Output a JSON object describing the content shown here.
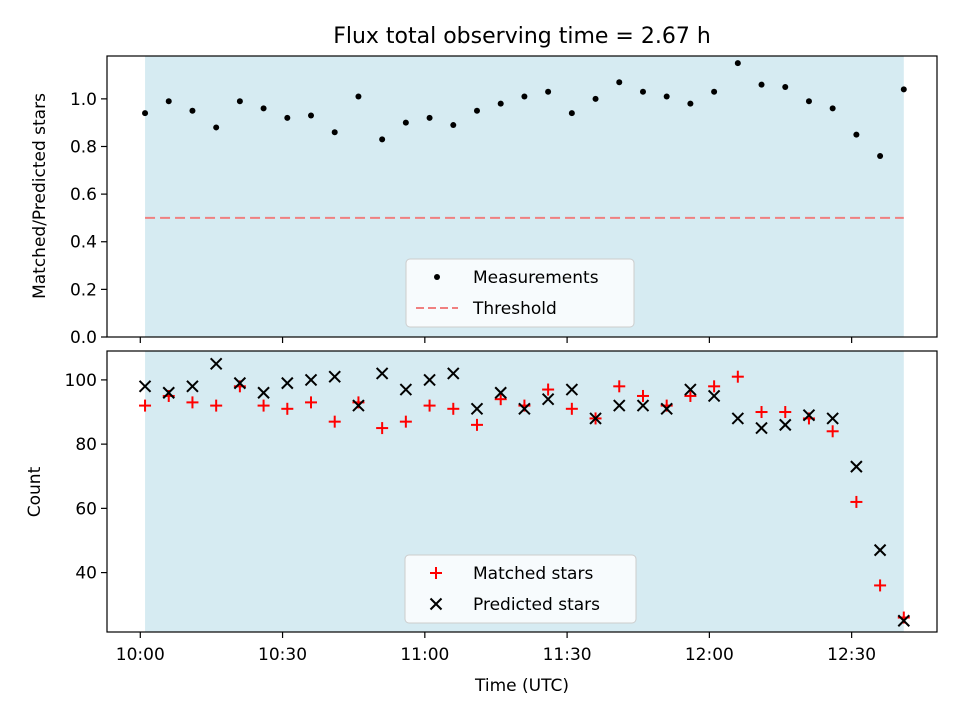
{
  "chart_data": [
    {
      "type": "scatter",
      "title": "Flux total observing time = 2.67 h",
      "xlabel": "",
      "ylabel": "Matched/Predicted stars",
      "ylim": [
        0,
        1.18
      ],
      "yticks": [
        "0.0",
        "0.2",
        "0.4",
        "0.6",
        "0.8",
        "1.0"
      ],
      "ytick_values": [
        0,
        0.2,
        0.4,
        0.6,
        0.8,
        1.0
      ],
      "x": [
        0.0167,
        0.1,
        0.1833,
        0.2667,
        0.35,
        0.4333,
        0.5167,
        0.6,
        0.6833,
        0.7667,
        0.85,
        0.9333,
        1.0167,
        1.1,
        1.1833,
        1.2667,
        1.35,
        1.4333,
        1.5167,
        1.6,
        1.6833,
        1.7667,
        1.85,
        1.9333,
        2.0167,
        2.1,
        2.1833,
        2.2667,
        2.35,
        2.4333,
        2.5167,
        2.6,
        2.6833
      ],
      "series": [
        {
          "name": "Measurements",
          "values": [
            0.94,
            0.99,
            0.95,
            0.88,
            0.99,
            0.96,
            0.92,
            0.93,
            0.86,
            1.01,
            0.83,
            0.9,
            0.92,
            0.89,
            0.95,
            0.98,
            1.01,
            1.03,
            0.94,
            1.0,
            1.07,
            1.03,
            1.01,
            0.98,
            1.03,
            1.15,
            1.06,
            1.05,
            0.99,
            0.96,
            0.85,
            0.76,
            1.04
          ]
        },
        {
          "name": "Threshold",
          "values": [
            0.5,
            0.5
          ]
        }
      ],
      "threshold": 0.5,
      "shaded_span_hours": [
        0.0167,
        2.6833
      ],
      "legend": [
        "Measurements",
        "Threshold"
      ],
      "legend_position": "lower-center"
    },
    {
      "type": "scatter",
      "title": "",
      "xlabel": "Time (UTC)",
      "ylabel": "Count",
      "ylim": [
        21.5,
        109
      ],
      "yticks": [
        "40",
        "60",
        "80",
        "100"
      ],
      "ytick_values": [
        40,
        60,
        80,
        100
      ],
      "xlim_hours": [
        -0.117,
        2.8
      ],
      "xticks": [
        "10:00",
        "10:30",
        "11:00",
        "11:30",
        "12:00",
        "12:30"
      ],
      "xtick_values": [
        0,
        0.5,
        1.0,
        1.5,
        2.0,
        2.5
      ],
      "x": [
        0.0167,
        0.1,
        0.1833,
        0.2667,
        0.35,
        0.4333,
        0.5167,
        0.6,
        0.6833,
        0.7667,
        0.85,
        0.9333,
        1.0167,
        1.1,
        1.1833,
        1.2667,
        1.35,
        1.4333,
        1.5167,
        1.6,
        1.6833,
        1.7667,
        1.85,
        1.9333,
        2.0167,
        2.1,
        2.1833,
        2.2667,
        2.35,
        2.4333,
        2.5167,
        2.6,
        2.6833
      ],
      "series": [
        {
          "name": "Matched stars",
          "values": [
            92,
            95,
            93,
            92,
            98,
            92,
            91,
            93,
            87,
            93,
            85,
            87,
            92,
            91,
            86,
            94,
            92,
            97,
            91,
            88,
            98,
            95,
            92,
            95,
            98,
            101,
            90,
            90,
            88,
            84,
            62,
            36,
            26
          ]
        },
        {
          "name": "Predicted stars",
          "values": [
            98,
            96,
            98,
            105,
            99,
            96,
            99,
            100,
            101,
            92,
            102,
            97,
            100,
            102,
            91,
            96,
            91,
            94,
            97,
            88,
            92,
            92,
            91,
            97,
            95,
            88,
            85,
            86,
            89,
            88,
            73,
            47,
            25
          ]
        }
      ],
      "shaded_span_hours": [
        0.0167,
        2.6833
      ],
      "legend": [
        "Matched stars",
        "Predicted stars"
      ],
      "legend_position": "lower-center"
    }
  ],
  "colors": {
    "shade": "#add8e6",
    "measurement": "#000000",
    "threshold": "#f08080",
    "matched": "#ff0000",
    "predicted": "#000000"
  }
}
